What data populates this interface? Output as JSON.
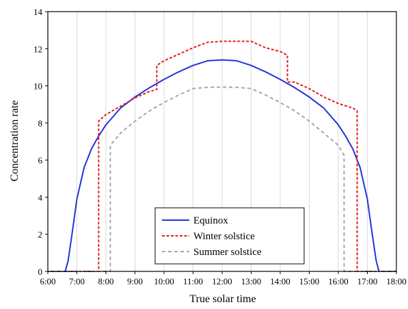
{
  "chart_data": {
    "type": "line",
    "xlabel": "True solar time",
    "ylabel": "Concentration rate",
    "xlim": [
      6,
      18
    ],
    "ylim": [
      0,
      14
    ],
    "x_ticks": [
      "6:00",
      "7:00",
      "8:00",
      "9:00",
      "10:00",
      "11:00",
      "12:00",
      "13:00",
      "14:00",
      "15:00",
      "16:00",
      "17:00",
      "18:00"
    ],
    "y_ticks": [
      "0",
      "2",
      "4",
      "6",
      "8",
      "10",
      "12",
      "14"
    ],
    "grid": "vertical",
    "legend_position": "bottom-center",
    "series": [
      {
        "name": "Equinox",
        "color": "#1f35d8",
        "style": "solid",
        "x": [
          6.0,
          6.6,
          6.7,
          6.85,
          7.0,
          7.25,
          7.5,
          7.75,
          8.0,
          8.5,
          9.0,
          9.5,
          10.0,
          10.5,
          11.0,
          11.5,
          12.0,
          12.5,
          13.0,
          13.5,
          14.0,
          14.5,
          15.0,
          15.5,
          16.0,
          16.25,
          16.5,
          16.75,
          17.0,
          17.15,
          17.3,
          17.4,
          18.0
        ],
        "y": [
          0,
          0,
          0.6,
          2.2,
          3.9,
          5.6,
          6.6,
          7.3,
          7.9,
          8.8,
          9.4,
          9.9,
          10.35,
          10.75,
          11.1,
          11.35,
          11.4,
          11.35,
          11.1,
          10.75,
          10.35,
          9.9,
          9.4,
          8.8,
          7.9,
          7.3,
          6.6,
          5.6,
          3.9,
          2.2,
          0.6,
          0,
          0
        ]
      },
      {
        "name": "Winter solstice",
        "color": "#e02020",
        "style": "dashed",
        "x": [
          6.0,
          7.75,
          7.75,
          8.0,
          8.5,
          9.0,
          9.5,
          9.75,
          9.75,
          10.0,
          10.5,
          11.0,
          11.5,
          12.0,
          12.5,
          13.0,
          13.5,
          14.0,
          14.25,
          14.25,
          14.5,
          15.0,
          15.5,
          16.0,
          16.5,
          16.65,
          16.65,
          18.0
        ],
        "y": [
          0,
          0,
          8.1,
          8.45,
          8.9,
          9.35,
          9.7,
          9.8,
          11.1,
          11.35,
          11.7,
          12.05,
          12.35,
          12.4,
          12.4,
          12.4,
          12.05,
          11.85,
          11.65,
          10.2,
          10.2,
          9.85,
          9.4,
          9.05,
          8.8,
          8.65,
          0,
          0
        ]
      },
      {
        "name": "Summer solstice",
        "color": "#a6a6a6",
        "style": "dashed",
        "x": [
          6.0,
          8.15,
          8.15,
          8.5,
          9.0,
          9.5,
          10.0,
          10.5,
          11.0,
          11.5,
          12.0,
          12.5,
          13.0,
          13.5,
          14.0,
          14.5,
          15.0,
          15.5,
          16.0,
          16.2,
          16.2,
          18.0
        ],
        "y": [
          0,
          0,
          6.8,
          7.45,
          8.1,
          8.65,
          9.1,
          9.5,
          9.85,
          9.92,
          9.93,
          9.92,
          9.85,
          9.5,
          9.1,
          8.65,
          8.1,
          7.45,
          6.8,
          6.25,
          0,
          0
        ]
      }
    ]
  }
}
